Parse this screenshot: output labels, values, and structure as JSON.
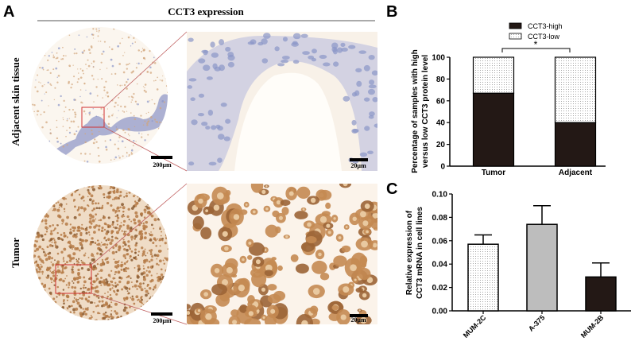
{
  "panel_a": {
    "label": "A",
    "title": "CCT3 expression",
    "rows": [
      {
        "label": "Adjacent skin tissue",
        "scale_low": "200µm",
        "scale_high": "20µm"
      },
      {
        "label": "Tumor",
        "scale_low": "200µm",
        "scale_high": "20µm"
      }
    ],
    "colors": {
      "stain_brown": "#b57a45",
      "hematoxylin_blue": "#8a96c8",
      "zoom_box": "#d03030"
    }
  },
  "chart_data": [
    {
      "panel_label": "B",
      "type": "bar",
      "stacked": true,
      "categories": [
        "Tumor",
        "Adjacent"
      ],
      "series": [
        {
          "name": "CCT3-high",
          "values": [
            67,
            40
          ],
          "color": "#231815",
          "pattern": "solid"
        },
        {
          "name": "CCT3-low",
          "values": [
            33,
            60
          ],
          "color": "#ffffff",
          "pattern": "dotted"
        }
      ],
      "ylabel": "Percentage of samples with high versus low CCT3 protein level",
      "ylabel_lines": [
        "Percentage of samples with high",
        "versus low CCT3 protein level"
      ],
      "ylim": [
        0,
        100
      ],
      "yticks": [
        "0",
        "20",
        "40",
        "60",
        "80",
        "100"
      ],
      "legend": "top-center",
      "annotation": "*"
    },
    {
      "panel_label": "C",
      "type": "bar",
      "categories": [
        "MUM-2C",
        "A-375",
        "MUM-2B"
      ],
      "values": [
        0.057,
        0.074,
        0.029
      ],
      "errors": [
        0.008,
        0.016,
        0.012
      ],
      "colors": [
        "#ffffff",
        "#bdbdbd",
        "#231815"
      ],
      "patterns": [
        "dotted",
        "solid",
        "solid"
      ],
      "ylabel": "Relative expression of CCT3 mRNA in cell lines",
      "ylabel_lines": [
        "Relative expression of",
        "CCT3 mRNA in cell lines"
      ],
      "ylim": [
        0,
        0.1
      ],
      "yticks": [
        "0.00",
        "0.02",
        "0.04",
        "0.06",
        "0.08",
        "0.10"
      ]
    }
  ]
}
